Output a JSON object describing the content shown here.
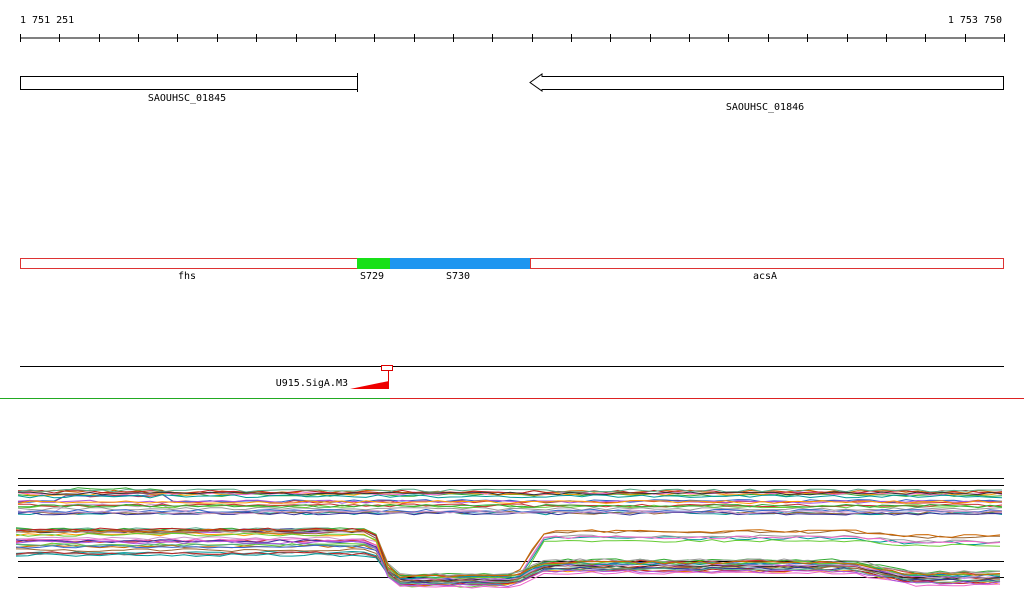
{
  "ruler": {
    "start_label": "1 751 251",
    "end_label": "1 753 750"
  },
  "genes": [
    {
      "label": "SAOUHSC_01845"
    },
    {
      "label": "SAOUHSC_01846"
    }
  ],
  "segments": [
    {
      "label": "fhs"
    },
    {
      "label": "S729"
    },
    {
      "label": "S730"
    },
    {
      "label": "acsA"
    }
  ],
  "features": [
    {
      "label": "U915.SigA.M3"
    }
  ]
}
